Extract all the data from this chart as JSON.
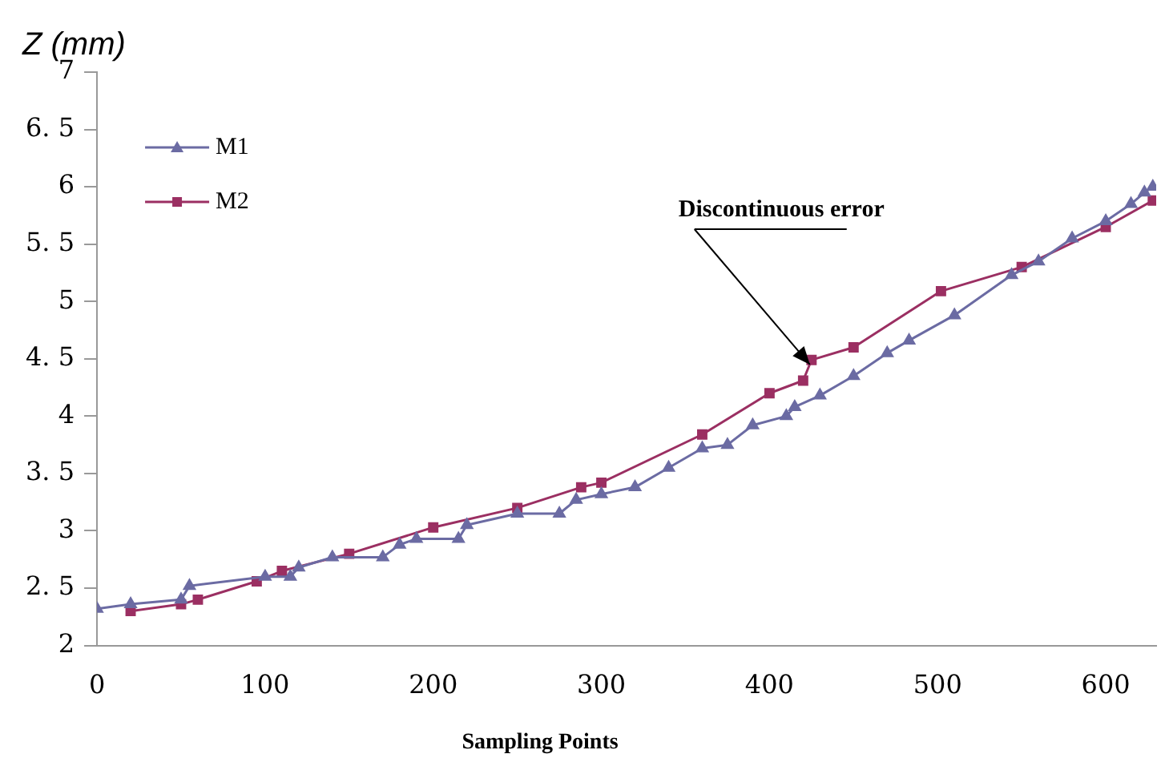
{
  "chart_data": {
    "type": "line",
    "ylabel": "Z (mm)",
    "xlabel": "Sampling Points",
    "xlim": [
      0,
      630
    ],
    "xticks": [
      0,
      100,
      200,
      300,
      400,
      500,
      600
    ],
    "ylim": [
      2,
      7
    ],
    "yticks": [
      2,
      {
        "value": 2.5,
        "label": "2. 5"
      },
      3,
      {
        "value": 3.5,
        "label": "3. 5"
      },
      4,
      {
        "value": 4.5,
        "label": "4. 5"
      },
      5,
      {
        "value": 5.5,
        "label": "5. 5"
      },
      6,
      {
        "value": 6.5,
        "label": "6. 5"
      },
      7
    ],
    "grid": false,
    "legend": "top left",
    "line_style": "solid",
    "annotations": [
      {
        "text": "Discontinuous error",
        "x": 424,
        "y": 4.45
      }
    ],
    "series": [
      {
        "name": "M1",
        "color": "#6b6ba3",
        "marker": "triangle",
        "x": [
          0,
          20,
          50,
          55,
          100,
          115,
          120,
          140,
          170,
          180,
          190,
          215,
          220,
          250,
          275,
          285,
          300,
          320,
          340,
          360,
          375,
          390,
          410,
          415,
          430,
          450,
          470,
          483,
          510,
          544,
          560,
          580,
          600,
          615,
          623,
          628
        ],
        "values": [
          2.32,
          2.36,
          2.4,
          2.52,
          2.6,
          2.6,
          2.68,
          2.77,
          2.77,
          2.88,
          2.93,
          2.93,
          3.05,
          3.15,
          3.15,
          3.27,
          3.32,
          3.38,
          3.55,
          3.72,
          3.75,
          3.92,
          4.0,
          4.08,
          4.18,
          4.35,
          4.55,
          4.66,
          4.88,
          5.23,
          5.35,
          5.55,
          5.7,
          5.85,
          5.95,
          6.0
        ]
      },
      {
        "name": "M2",
        "color": "#9b2f62",
        "marker": "square",
        "x": [
          20,
          50,
          60,
          95,
          110,
          150,
          200,
          250,
          288,
          300,
          360,
          400,
          420,
          425,
          450,
          502,
          550,
          600,
          628
        ],
        "values": [
          2.3,
          2.36,
          2.4,
          2.56,
          2.65,
          2.8,
          3.03,
          3.2,
          3.38,
          3.42,
          3.84,
          4.2,
          4.31,
          4.49,
          4.6,
          5.09,
          5.3,
          5.65,
          5.88
        ]
      }
    ]
  }
}
